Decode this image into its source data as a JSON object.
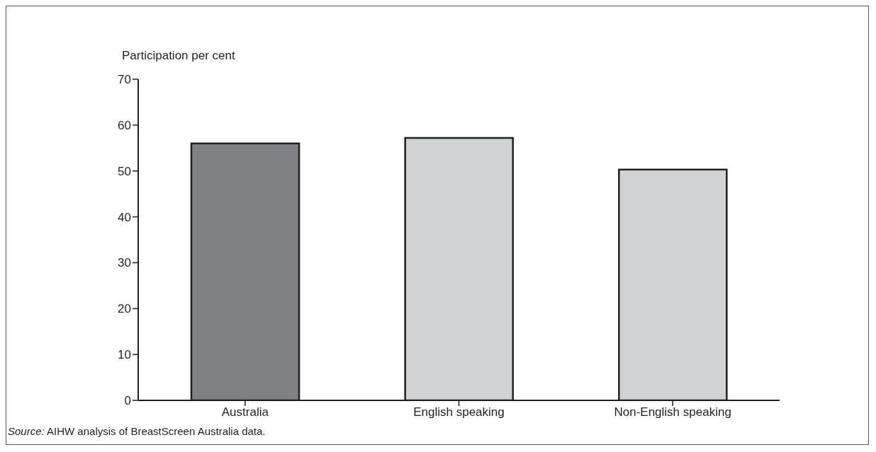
{
  "chart_data": {
    "type": "bar",
    "ylabel": "Participation per cent",
    "categories": [
      "Australia",
      "English speaking",
      "Non-English speaking"
    ],
    "values": [
      56.0,
      57.2,
      50.3
    ],
    "colors": [
      "#808184",
      "#d1d2d4",
      "#d1d2d4"
    ],
    "ylim": [
      0,
      70
    ],
    "yticks": [
      0,
      10,
      20,
      30,
      40,
      50,
      60,
      70
    ],
    "grid": false,
    "annotations": [
      "Source: AIHW analysis of BreastScreen Australia data."
    ]
  }
}
